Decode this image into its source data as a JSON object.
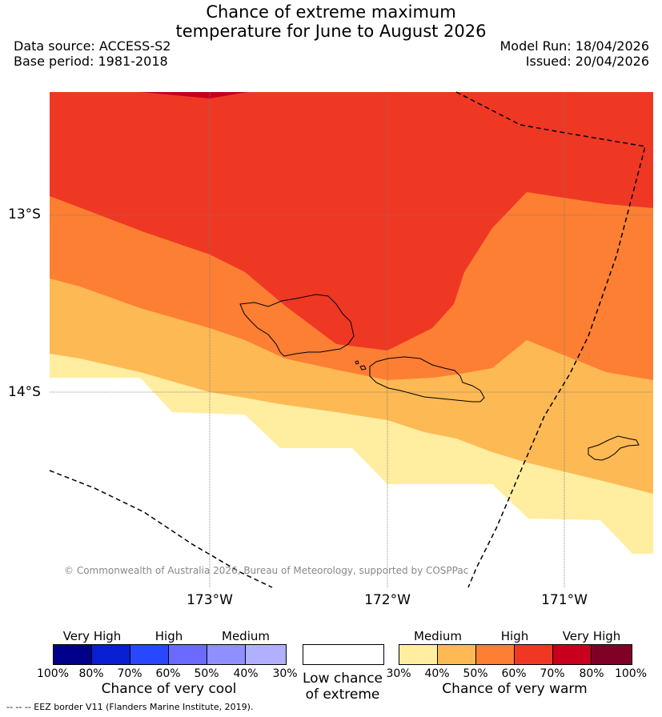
{
  "title_line1": "Chance of extreme maximum",
  "title_line2": "temperature for June to August 2026",
  "data_source": "Data source: ACCESS-S2",
  "base_period": "Base period: 1981-2018",
  "model_run": "Model Run: 18/04/2026",
  "issued": "Issued: 20/04/2026",
  "lat_labels": [
    "13°S",
    "14°S"
  ],
  "lon_labels": [
    "173°W",
    "172°W",
    "171°W"
  ],
  "copyright": "© Commonwealth of Australia 2026, Bureau of Meteorology, supported by COSPPac",
  "legend": {
    "cool": {
      "categories": [
        "Very High",
        "High",
        "Medium"
      ],
      "ticks": [
        "100%",
        "80%",
        "70%",
        "60%",
        "50%",
        "40%",
        "30%"
      ],
      "caption": "Chance of very cool",
      "colors": [
        "#00008b",
        "#0a1ed2",
        "#2847ff",
        "#6a6aff",
        "#8f8fff",
        "#b0b0ff"
      ]
    },
    "neutral": {
      "caption_line1": "Low chance",
      "caption_line2": "of extreme",
      "color": "#ffffff"
    },
    "warm": {
      "categories": [
        "Medium",
        "High",
        "Very High"
      ],
      "ticks": [
        "30%",
        "40%",
        "50%",
        "60%",
        "70%",
        "80%",
        "100%"
      ],
      "caption": "Chance of very warm",
      "colors": [
        "#ffeda0",
        "#fdb954",
        "#fd7f33",
        "#ee3824",
        "#c8001e",
        "#800026"
      ]
    }
  },
  "map_colors": {
    "very_high_warm": "#c8001e",
    "high_60_70": "#ee3824",
    "high_50_60": "#fd7f33",
    "medium_40_50": "#fdb954",
    "medium_30_40": "#ffeda0",
    "low": "#ffffff"
  },
  "eez_note": "--  --  -- EEZ border V11 (Flanders Marine Institute, 2019)."
}
